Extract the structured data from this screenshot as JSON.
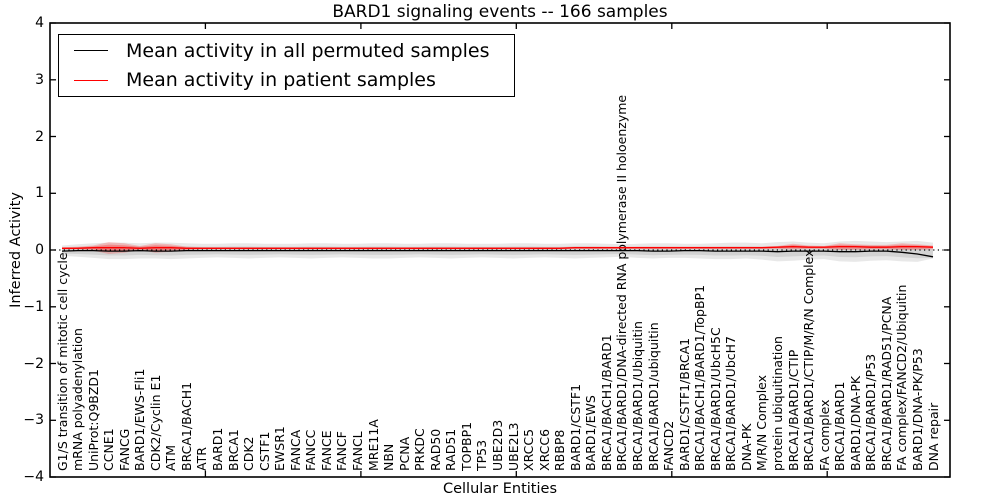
{
  "chart_data": {
    "type": "line",
    "title": "BARD1 signaling events -- 166 samples",
    "xlabel": "Cellular Entities",
    "ylabel": "Inferred Activity",
    "ylim": [
      -4,
      4
    ],
    "yticks": [
      4,
      3,
      2,
      1,
      0,
      -1,
      -2,
      -3,
      -4
    ],
    "grid": false,
    "zero_line": "dotted",
    "legend_position": "upper left",
    "categories": [
      "G1/S transition of mitotic cell cycle",
      "mRNA polyadenylation",
      "UniProt:Q9BZD1",
      "CCNE1",
      "FANCG",
      "BARD1/EWS-Fli1",
      "CDK2/Cyclin E1",
      "ATM",
      "BRCA1/BACH1",
      "ATR",
      "BARD1",
      "BRCA1",
      "CDK2",
      "CSTF1",
      "EWSR1",
      "FANCA",
      "FANCC",
      "FANCE",
      "FANCF",
      "FANCL",
      "MRE11A",
      "NBN",
      "PCNA",
      "PRKDC",
      "RAD50",
      "RAD51",
      "TOPBP1",
      "TP53",
      "UBE2D3",
      "UBE2L3",
      "XRCC5",
      "XRCC6",
      "RBBP8",
      "BARD1/CSTF1",
      "BARD1/EWS",
      "BRCA1/BACH1/BARD1",
      "BRCA1/BARD1/DNA-directed RNA polymerase II holoenzyme",
      "BRCA1/BARD1/Ubiquitin",
      "BRCA1/BARD1/ubiquitin",
      "FANCD2",
      "BARD1/CSTF1/BRCA1",
      "BRCA1/BACH1/BARD1/TopBP1",
      "BRCA1/BARD1/UbcH5C",
      "BRCA1/BARD1/UbcH7",
      "DNA-PK",
      "M/R/N Complex",
      "protein ubiquitination",
      "BRCA1/BARD1/CTIP",
      "BRCA1/BARD1/CTIP/M/R/N Complex",
      "FA complex",
      "BRCA1/BARD1",
      "BARD1/DNA-PK",
      "BRCA1/BARD1/P53",
      "BRCA1/BARD1/RAD51/PCNA",
      "FA complex/FANCD2/Ubiquitin",
      "BARD1/DNA-PK/P53",
      "DNA repair"
    ],
    "series": [
      {
        "name": "Mean activity in all permuted samples",
        "color": "#000000",
        "band_color": "#888888",
        "values": [
          -0.02,
          -0.01,
          -0.01,
          -0.02,
          -0.02,
          -0.01,
          -0.02,
          -0.02,
          -0.01,
          -0.01,
          -0.01,
          -0.01,
          -0.01,
          -0.01,
          -0.01,
          -0.01,
          -0.01,
          -0.01,
          -0.01,
          -0.01,
          -0.01,
          -0.01,
          -0.01,
          -0.01,
          -0.01,
          -0.01,
          -0.01,
          -0.01,
          -0.01,
          -0.01,
          -0.01,
          -0.01,
          -0.01,
          -0.01,
          -0.01,
          -0.01,
          -0.01,
          -0.01,
          -0.02,
          -0.02,
          -0.01,
          -0.01,
          -0.02,
          -0.02,
          -0.02,
          -0.02,
          -0.03,
          -0.02,
          -0.02,
          -0.02,
          -0.03,
          -0.03,
          -0.02,
          -0.02,
          -0.04,
          -0.07,
          -0.12
        ],
        "band_upper": [
          0.08,
          0.1,
          0.12,
          0.13,
          0.13,
          0.12,
          0.13,
          0.13,
          0.12,
          0.11,
          0.11,
          0.12,
          0.12,
          0.11,
          0.11,
          0.11,
          0.12,
          0.12,
          0.11,
          0.11,
          0.12,
          0.12,
          0.11,
          0.11,
          0.12,
          0.12,
          0.11,
          0.11,
          0.11,
          0.12,
          0.12,
          0.11,
          0.11,
          0.12,
          0.12,
          0.11,
          0.1,
          0.11,
          0.12,
          0.12,
          0.11,
          0.11,
          0.12,
          0.13,
          0.13,
          0.12,
          0.14,
          0.15,
          0.13,
          0.12,
          0.15,
          0.16,
          0.15,
          0.14,
          0.15,
          0.16,
          0.13
        ],
        "band_lower": [
          -0.1,
          -0.12,
          -0.14,
          -0.16,
          -0.16,
          -0.15,
          -0.15,
          -0.16,
          -0.15,
          -0.14,
          -0.13,
          -0.14,
          -0.15,
          -0.14,
          -0.13,
          -0.14,
          -0.15,
          -0.14,
          -0.13,
          -0.14,
          -0.15,
          -0.15,
          -0.14,
          -0.13,
          -0.14,
          -0.15,
          -0.14,
          -0.13,
          -0.14,
          -0.15,
          -0.14,
          -0.13,
          -0.14,
          -0.15,
          -0.14,
          -0.13,
          -0.12,
          -0.14,
          -0.15,
          -0.14,
          -0.14,
          -0.15,
          -0.16,
          -0.16,
          -0.15,
          -0.17,
          -0.2,
          -0.19,
          -0.17,
          -0.16,
          -0.2,
          -0.21,
          -0.19,
          -0.18,
          -0.2,
          -0.21,
          -0.15
        ]
      },
      {
        "name": "Mean activity in patient samples",
        "color": "#ff0000",
        "band_color": "#ff6060",
        "values": [
          0.03,
          0.03,
          0.04,
          0.04,
          0.04,
          0.03,
          0.04,
          0.04,
          0.03,
          0.03,
          0.03,
          0.03,
          0.03,
          0.03,
          0.03,
          0.03,
          0.03,
          0.03,
          0.03,
          0.03,
          0.03,
          0.03,
          0.03,
          0.03,
          0.03,
          0.03,
          0.03,
          0.03,
          0.03,
          0.03,
          0.03,
          0.03,
          0.03,
          0.04,
          0.04,
          0.04,
          0.04,
          0.04,
          0.04,
          0.04,
          0.04,
          0.04,
          0.04,
          0.04,
          0.04,
          0.04,
          0.05,
          0.06,
          0.05,
          0.05,
          0.06,
          0.06,
          0.05,
          0.05,
          0.06,
          0.06,
          0.05
        ],
        "band_upper": [
          0.05,
          0.06,
          0.08,
          0.14,
          0.12,
          0.07,
          0.12,
          0.1,
          0.06,
          0.05,
          0.05,
          0.05,
          0.05,
          0.05,
          0.05,
          0.05,
          0.05,
          0.05,
          0.05,
          0.05,
          0.05,
          0.05,
          0.05,
          0.05,
          0.05,
          0.05,
          0.05,
          0.05,
          0.05,
          0.05,
          0.05,
          0.05,
          0.05,
          0.06,
          0.06,
          0.06,
          0.06,
          0.06,
          0.06,
          0.06,
          0.06,
          0.06,
          0.06,
          0.06,
          0.06,
          0.06,
          0.07,
          0.11,
          0.08,
          0.07,
          0.12,
          0.1,
          0.09,
          0.09,
          0.12,
          0.1,
          0.08
        ],
        "band_lower": [
          0.01,
          0.01,
          -0.01,
          -0.07,
          -0.05,
          0.0,
          -0.05,
          -0.03,
          0.0,
          0.01,
          0.01,
          0.01,
          0.01,
          0.01,
          0.01,
          0.01,
          0.01,
          0.01,
          0.01,
          0.01,
          0.01,
          0.01,
          0.01,
          0.01,
          0.01,
          0.01,
          0.01,
          0.01,
          0.01,
          0.01,
          0.01,
          0.01,
          0.01,
          0.02,
          0.02,
          0.02,
          0.02,
          0.02,
          0.02,
          0.02,
          0.02,
          0.02,
          0.02,
          0.02,
          0.02,
          0.02,
          0.02,
          0.01,
          0.02,
          0.02,
          0.0,
          0.0,
          0.01,
          0.01,
          0.0,
          0.0,
          0.01
        ]
      }
    ]
  }
}
